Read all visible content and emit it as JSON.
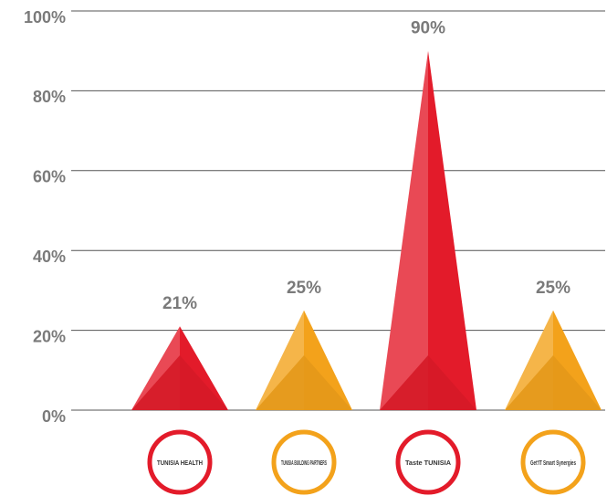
{
  "chart_data": {
    "type": "pyramid",
    "categories": [
      "TUNISIA HEALTH",
      "TUNISIA BUILDING PARTNERS",
      "Taste TUNISIA",
      "Get'IT Smart Synergies"
    ],
    "values": [
      21,
      25,
      90,
      25
    ],
    "value_labels": [
      "21%",
      "25%",
      "90%",
      "25%"
    ],
    "colors": [
      "#e31b2a",
      "#f3a21b",
      "#e31b2a",
      "#f3a21b"
    ],
    "ylim": [
      0,
      100
    ],
    "yticks": [
      {
        "value": 0,
        "label": "0%"
      },
      {
        "value": 20,
        "label": "20%"
      },
      {
        "value": 40,
        "label": "40%"
      },
      {
        "value": 60,
        "label": "60%"
      },
      {
        "value": 80,
        "label": "80%"
      },
      {
        "value": 100,
        "label": "100%"
      }
    ],
    "grid": true
  }
}
